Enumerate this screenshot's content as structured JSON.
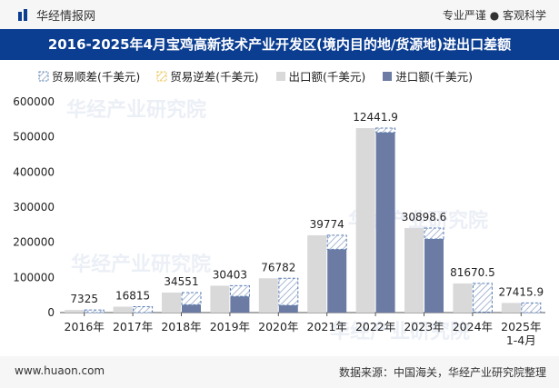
{
  "header": {
    "brand": "华经情报网",
    "tagline": "专业严谨 ● 客观科学"
  },
  "title": "2016-2025年4月宝鸡高新技术产业开发区(境内目的地/货源地)进出口差额",
  "footer": {
    "website": "www.huaon.com",
    "source": "数据来源：中国海关，华经产业研究院整理"
  },
  "watermark": "华经产业研究院",
  "colors": {
    "export": "#d9d9d9",
    "import": "#6b7ba3",
    "surplus_stroke": "#5b7fb5",
    "deficit_stroke": "#e8c24a",
    "title_bg": "#0b3d91"
  },
  "chart_data": {
    "type": "bar",
    "categories": [
      "2016年",
      "2017年",
      "2018年",
      "2019年",
      "2020年",
      "2021年",
      "2022年",
      "2023年",
      "2024年",
      "2025年\n1-4月"
    ],
    "series": [
      {
        "name": "贸易顺差(千美元)",
        "values": [
          7325,
          16815,
          34551,
          30403,
          76782,
          39774,
          12441.9,
          30898.6,
          81670.5,
          27415.9
        ]
      },
      {
        "name": "贸易逆差(千美元)",
        "values": [
          0,
          0,
          0,
          0,
          0,
          0,
          0,
          0,
          0,
          0
        ]
      },
      {
        "name": "出口额(千美元)",
        "values": [
          7325,
          16815,
          57000,
          76500,
          97500,
          220000,
          525000,
          240500,
          83000,
          27415.9
        ]
      },
      {
        "name": "进口额(千美元)",
        "values": [
          0,
          0,
          22449,
          46097,
          20718,
          180226,
          512558,
          209601,
          1330,
          0
        ]
      }
    ],
    "data_labels": [
      "7325",
      "16815",
      "34551",
      "30403",
      "76782",
      "39774",
      "12441.9",
      "30898.6",
      "81670.5",
      "27415.9"
    ],
    "yticks": [
      "0",
      "100000",
      "200000",
      "300000",
      "400000",
      "500000",
      "600000"
    ],
    "ylim": [
      0,
      600000
    ],
    "legend_position": "top-left"
  }
}
